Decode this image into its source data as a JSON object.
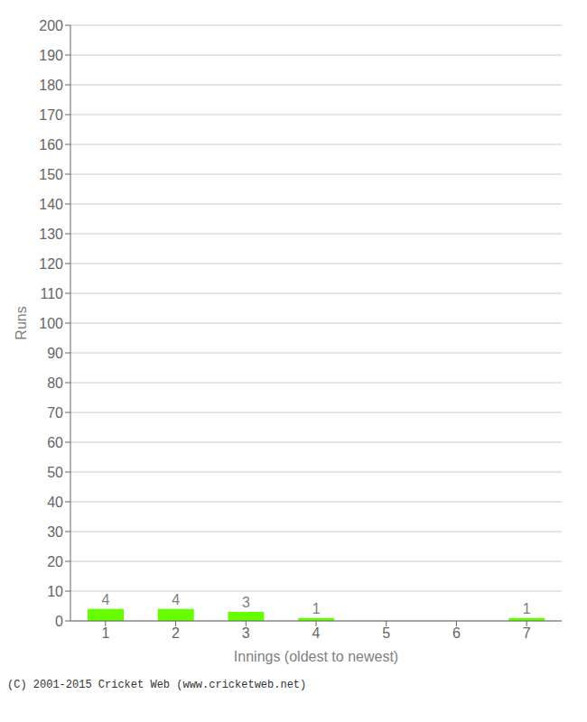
{
  "chart_data": {
    "type": "bar",
    "xlabel": "Innings (oldest to newest)",
    "ylabel": "Runs",
    "categories": [
      1,
      2,
      3,
      4,
      5,
      6,
      7
    ],
    "values": [
      4,
      4,
      3,
      1,
      0,
      0,
      1
    ],
    "color": "#66ff00",
    "ylim": [
      0,
      200
    ],
    "yticks": [
      0,
      10,
      20,
      30,
      40,
      50,
      60,
      70,
      80,
      90,
      100,
      110,
      120,
      130,
      140,
      150,
      160,
      170,
      180,
      190,
      200
    ],
    "grid": true,
    "data_labels": true,
    "annotations": [
      "(C) 2001-2015 Cricket Web (www.cricketweb.net)"
    ]
  }
}
